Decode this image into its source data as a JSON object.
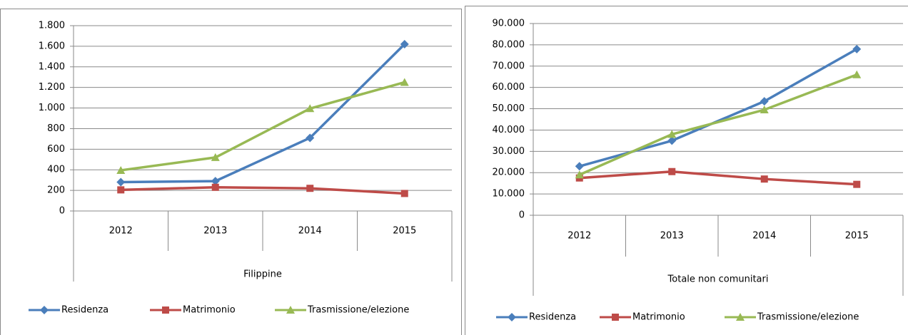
{
  "chart_data": [
    {
      "type": "line",
      "x_label": "Filippine",
      "categories": [
        "2012",
        "2013",
        "2014",
        "2015"
      ],
      "series": [
        {
          "name": "Residenza",
          "color": "#4a7ebb",
          "marker": "diamond",
          "values": [
            280,
            290,
            710,
            1620
          ]
        },
        {
          "name": "Matrimonio",
          "color": "#be4b48",
          "marker": "square",
          "values": [
            205,
            230,
            220,
            170
          ]
        },
        {
          "name": "Trasmissione/elezione",
          "color": "#98b954",
          "marker": "triangle",
          "values": [
            395,
            520,
            995,
            1250
          ]
        }
      ],
      "ylim": [
        0,
        1800
      ],
      "yticks": [
        0,
        200,
        400,
        600,
        800,
        {
          "value": 1000,
          "label": "1.000"
        },
        {
          "value": 1200,
          "label": "1.200"
        },
        {
          "value": 1400,
          "label": "1.400"
        },
        {
          "value": 1600,
          "label": "1.600"
        },
        {
          "value": 1800,
          "label": "1.800"
        }
      ],
      "grid": true,
      "legend": "bottom"
    },
    {
      "type": "line",
      "x_label": "Totale non comunitari",
      "categories": [
        "2012",
        "2013",
        "2014",
        "2015"
      ],
      "series": [
        {
          "name": "Residenza",
          "color": "#4a7ebb",
          "marker": "diamond",
          "values": [
            23000,
            35000,
            53500,
            78000
          ]
        },
        {
          "name": "Matrimonio",
          "color": "#be4b48",
          "marker": "square",
          "values": [
            17500,
            20500,
            17000,
            14500
          ]
        },
        {
          "name": "Trasmissione/elezione",
          "color": "#98b954",
          "marker": "triangle",
          "values": [
            19000,
            38000,
            49500,
            66000
          ]
        }
      ],
      "ylim": [
        0,
        90000
      ],
      "yticks": [
        0,
        {
          "value": 10000,
          "label": "10.000"
        },
        {
          "value": 20000,
          "label": "20.000"
        },
        {
          "value": 30000,
          "label": "30.000"
        },
        {
          "value": 40000,
          "label": "40.000"
        },
        {
          "value": 50000,
          "label": "50.000"
        },
        {
          "value": 60000,
          "label": "60.000"
        },
        {
          "value": 70000,
          "label": "70.000"
        },
        {
          "value": 80000,
          "label": "80.000"
        },
        {
          "value": 90000,
          "label": "90.000"
        }
      ],
      "grid": true,
      "legend": "bottom"
    }
  ]
}
